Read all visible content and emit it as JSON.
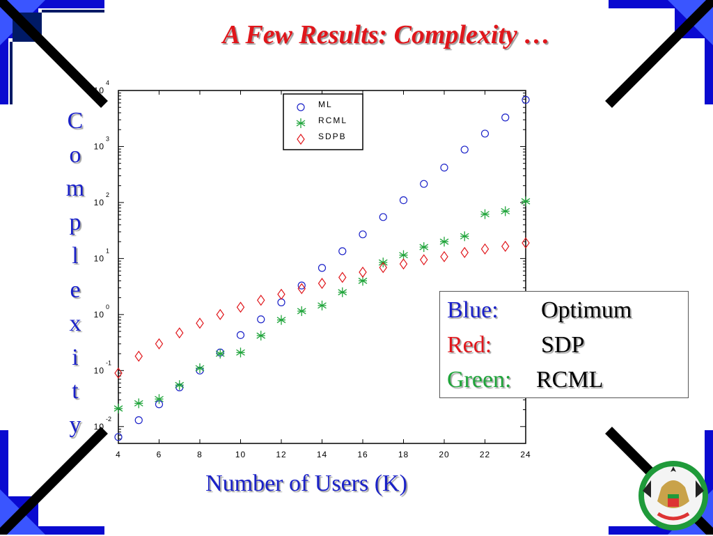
{
  "slide": {
    "title": "A Few Results: Complexity …",
    "y_title_letters": [
      "C",
      "o",
      "m",
      "p",
      "l",
      "e",
      "x",
      "i",
      "t",
      "y"
    ],
    "x_title": "Number of Users (K)"
  },
  "note": {
    "rows": [
      {
        "key": "Blue:",
        "value": "Optimum",
        "color": "#1a21c8"
      },
      {
        "key": "Red:",
        "value": "SDP",
        "color": "#e0161b"
      },
      {
        "key": "Green:",
        "value": "RCML",
        "color": "#1fa43a"
      }
    ]
  },
  "colors": {
    "frame_blue": "#0a0ad0",
    "title_red": "#e0161b",
    "axis_blue": "#1a21c8"
  },
  "icons": [
    "corner-frame-icon",
    "emblem-icon"
  ],
  "chart_data": {
    "type": "scatter",
    "xlabel": "",
    "ylabel": "",
    "xlim": [
      4,
      24
    ],
    "ylim": [
      0.005,
      10000
    ],
    "yscale": "log",
    "grid": false,
    "legend_position": "top-center",
    "xticks": [
      4,
      6,
      8,
      10,
      12,
      14,
      16,
      18,
      20,
      22,
      24
    ],
    "yticks": [
      {
        "base": "10",
        "exp": "-2",
        "value": 0.01
      },
      {
        "base": "10",
        "exp": "-1",
        "value": 0.1
      },
      {
        "base": "10",
        "exp": "0",
        "value": 1
      },
      {
        "base": "10",
        "exp": "1",
        "value": 10
      },
      {
        "base": "10",
        "exp": "2",
        "value": 100
      },
      {
        "base": "10",
        "exp": "3",
        "value": 1000
      },
      {
        "base": "10",
        "exp": "4",
        "value": 10000
      }
    ],
    "series": [
      {
        "name": "ML",
        "marker": "circle",
        "color": "#1a21c8",
        "x": [
          4,
          5,
          6,
          7,
          8,
          9,
          10,
          11,
          12,
          13,
          14,
          15,
          16,
          17,
          18,
          19,
          20,
          21,
          22,
          23,
          24
        ],
        "y": [
          0.0065,
          0.013,
          0.025,
          0.05,
          0.1,
          0.21,
          0.43,
          0.82,
          1.65,
          3.3,
          6.8,
          13.5,
          27,
          55,
          110,
          215,
          420,
          880,
          1700,
          3300,
          6800
        ]
      },
      {
        "name": "RCML",
        "marker": "star",
        "color": "#1fa43a",
        "x": [
          4,
          5,
          6,
          7,
          8,
          9,
          10,
          11,
          12,
          13,
          14,
          15,
          16,
          17,
          18,
          19,
          20,
          21,
          22,
          23,
          24
        ],
        "y": [
          0.021,
          0.026,
          0.031,
          0.055,
          0.11,
          0.2,
          0.21,
          0.42,
          0.8,
          1.15,
          1.45,
          2.5,
          4.0,
          8.5,
          11.5,
          16,
          20,
          25,
          62,
          70,
          105
        ]
      },
      {
        "name": "SDPB",
        "marker": "diamond",
        "color": "#e0161b",
        "x": [
          4,
          5,
          6,
          7,
          8,
          9,
          10,
          11,
          12,
          13,
          14,
          15,
          16,
          17,
          18,
          19,
          20,
          21,
          22,
          23,
          24
        ],
        "y": [
          0.09,
          0.18,
          0.3,
          0.47,
          0.7,
          1.0,
          1.35,
          1.8,
          2.3,
          2.9,
          3.6,
          4.6,
          5.7,
          6.9,
          8.0,
          9.5,
          10.8,
          12.8,
          14.8,
          16.5,
          19
        ]
      }
    ]
  }
}
